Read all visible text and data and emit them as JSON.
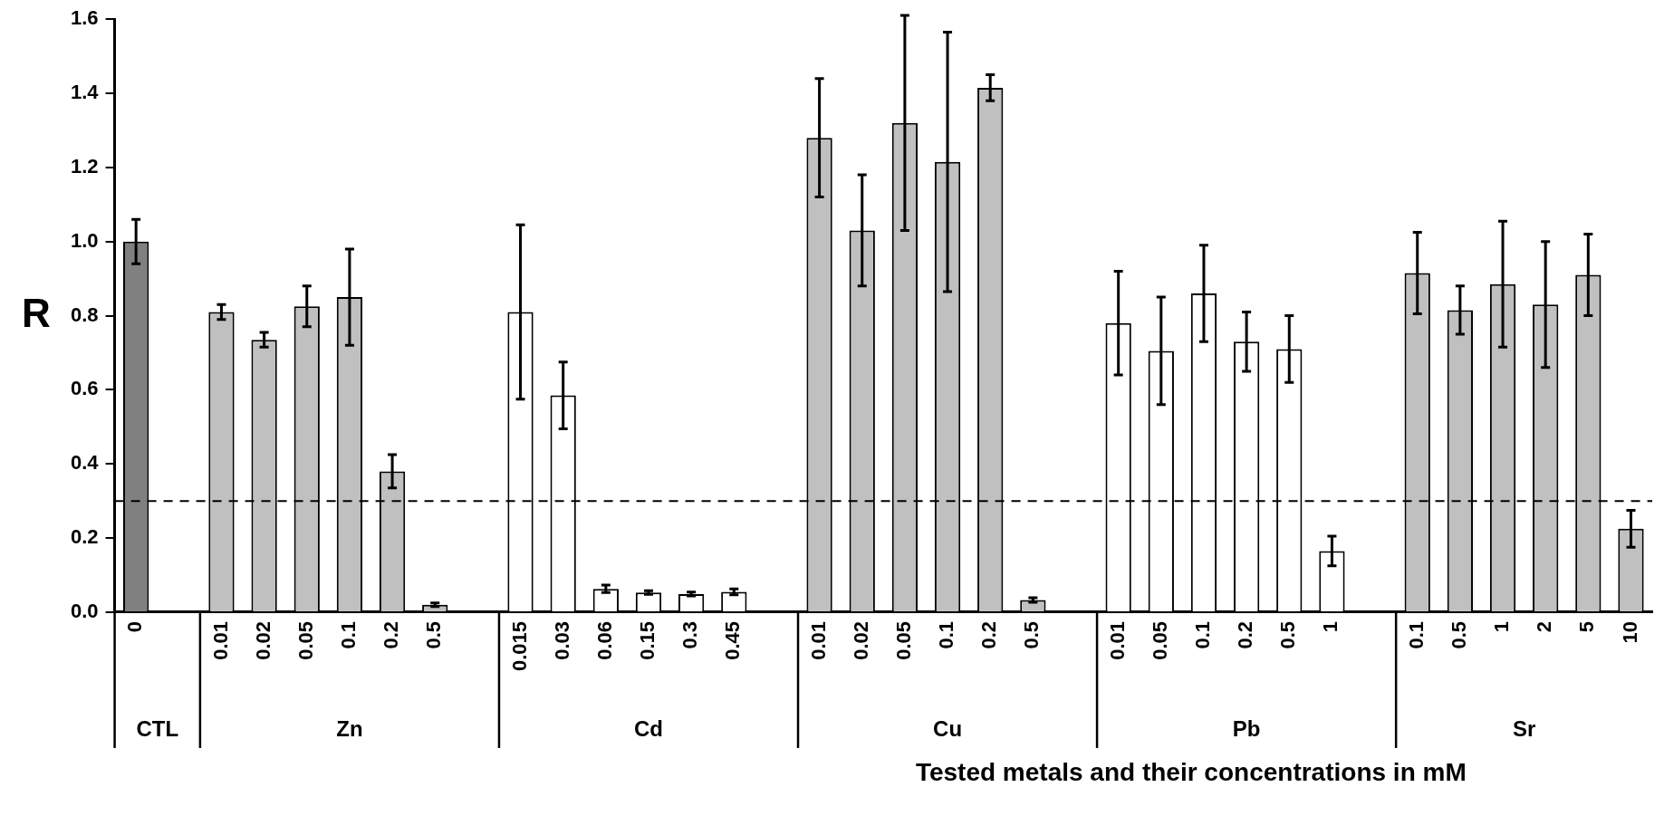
{
  "chart_data": {
    "type": "bar",
    "ylabel": "R",
    "xlabel": "Tested metals and their concentrations in mM",
    "categories": [
      "0",
      null,
      "0.01",
      "0.02",
      "0.05",
      "0.1",
      "0.2",
      "0.5",
      null,
      "0.015",
      "0.03",
      "0.06",
      "0.15",
      "0.3",
      "0.45",
      null,
      "0.01",
      "0.02",
      "0.05",
      "0.1",
      "0.2",
      "0.5",
      null,
      "0.01",
      "0.05",
      "0.1",
      "0.2",
      "0.5",
      "1",
      null,
      "0.1",
      "0.5",
      "1",
      "2",
      "5",
      "10"
    ],
    "values": [
      1.0,
      null,
      0.81,
      0.735,
      0.825,
      0.85,
      0.38,
      0.02,
      null,
      0.81,
      0.585,
      0.063,
      0.053,
      0.049,
      0.055,
      null,
      1.28,
      1.03,
      1.32,
      1.215,
      1.415,
      0.033,
      null,
      0.78,
      0.705,
      0.86,
      0.73,
      0.71,
      0.165,
      null,
      0.915,
      0.815,
      0.885,
      0.83,
      0.91,
      0.225
    ],
    "errors": [
      0.06,
      null,
      0.02,
      0.02,
      0.055,
      0.13,
      0.045,
      0.005,
      null,
      0.235,
      0.09,
      0.01,
      0.005,
      0.005,
      0.008,
      null,
      0.16,
      0.15,
      0.29,
      0.35,
      0.035,
      0.006,
      null,
      0.14,
      0.145,
      0.13,
      0.08,
      0.09,
      0.04,
      null,
      0.11,
      0.065,
      0.17,
      0.17,
      0.11,
      0.05
    ],
    "colors": [
      "#808080",
      null,
      "#c0c0c0",
      "#c0c0c0",
      "#c0c0c0",
      "#c0c0c0",
      "#c0c0c0",
      "#c0c0c0",
      null,
      "#ffffff",
      "#ffffff",
      "#ffffff",
      "#ffffff",
      "#ffffff",
      "#ffffff",
      null,
      "#c0c0c0",
      "#c0c0c0",
      "#c0c0c0",
      "#c0c0c0",
      "#c0c0c0",
      "#c0c0c0",
      null,
      "#ffffff",
      "#ffffff",
      "#ffffff",
      "#ffffff",
      "#ffffff",
      "#ffffff",
      null,
      "#c0c0c0",
      "#c0c0c0",
      "#c0c0c0",
      "#c0c0c0",
      "#c0c0c0",
      "#c0c0c0"
    ],
    "ylim": [
      0,
      1.6
    ],
    "yticks": [
      {
        "value": 0,
        "label": "0.0"
      },
      0.2,
      0.4,
      0.6,
      0.8,
      {
        "value": 1,
        "label": "1.0"
      },
      1.2,
      1.4,
      1.6
    ],
    "ref_lines": [
      {
        "axis": "y",
        "value": 0.3,
        "line_style": "dashed",
        "color": "#000000"
      }
    ],
    "annotations": [
      "CTL",
      "Zn",
      "Cd",
      "Cu",
      "Pb",
      "Sr"
    ],
    "grid": false,
    "legend": false
  }
}
